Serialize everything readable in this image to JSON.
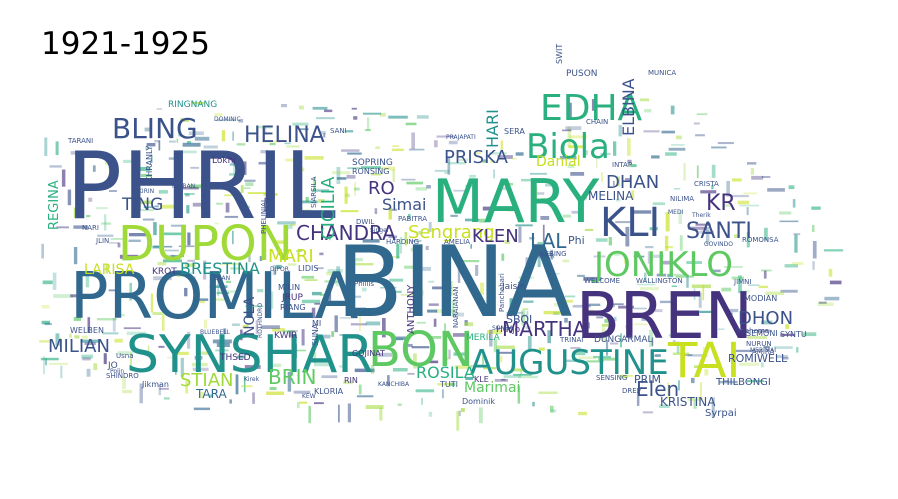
{
  "title": "1921-1925",
  "palette": {
    "dark_purple": "#46337e",
    "indigo": "#3b528b",
    "steel_blue": "#31688e",
    "teal": "#21918c",
    "sea_green": "#2ab07f",
    "green": "#5ec962",
    "lime": "#a0da39",
    "yellow_green": "#c8e020"
  },
  "words": [
    {
      "text": "PHRIL",
      "color": "#3b528b"
    },
    {
      "text": "BINA",
      "color": "#31688e"
    },
    {
      "text": "MARY",
      "color": "#2ab07f"
    },
    {
      "text": "PROMILA",
      "color": "#31688e"
    },
    {
      "text": "SYNSHAR",
      "color": "#21918c"
    },
    {
      "text": "BREN",
      "color": "#46337e"
    },
    {
      "text": "BON",
      "color": "#5ec962"
    },
    {
      "text": "DUPON",
      "color": "#a0da39"
    },
    {
      "text": "TAI",
      "color": "#c8e020"
    },
    {
      "text": "AUGUSTINE",
      "color": "#21918c"
    },
    {
      "text": "EDHA",
      "color": "#2ab07f"
    },
    {
      "text": "BLING",
      "color": "#3b528b"
    },
    {
      "text": "Biola",
      "color": "#2ab07f"
    },
    {
      "text": "JONIKLO",
      "color": "#5ec962"
    },
    {
      "text": "KLI",
      "color": "#3b528b"
    },
    {
      "text": "HELINA",
      "color": "#3b528b"
    },
    {
      "text": "CHANDRA",
      "color": "#46337e"
    },
    {
      "text": "MARTHA",
      "color": "#46337e"
    },
    {
      "text": "SANTI",
      "color": "#3b528b"
    },
    {
      "text": "MILIAN",
      "color": "#3b528b"
    },
    {
      "text": "STIAN",
      "color": "#a0da39"
    },
    {
      "text": "BRIN",
      "color": "#5ec962"
    },
    {
      "text": "ROSILA",
      "color": "#2ab07f"
    },
    {
      "text": "BRESTINA",
      "color": "#21918c"
    },
    {
      "text": "Sengrang",
      "color": "#c8e020"
    },
    {
      "text": "PRISKA",
      "color": "#3b528b"
    },
    {
      "text": "DHAN",
      "color": "#3b528b"
    },
    {
      "text": "DHON",
      "color": "#3b528b"
    },
    {
      "text": "Elen",
      "color": "#3b528b"
    },
    {
      "text": "KLEN",
      "color": "#46337e"
    },
    {
      "text": "LAL",
      "color": "#31688e"
    },
    {
      "text": "KR",
      "color": "#46337e"
    },
    {
      "text": "MARI",
      "color": "#c8e020"
    },
    {
      "text": "RO",
      "color": "#46337e"
    },
    {
      "text": "Simai",
      "color": "#3b528b"
    },
    {
      "text": "TING",
      "color": "#3b528b"
    },
    {
      "text": "LARISA",
      "color": "#c8e020"
    },
    {
      "text": "ELBINA",
      "color": "#3b528b"
    },
    {
      "text": "CICILIA",
      "color": "#2ab07f"
    },
    {
      "text": "HARI",
      "color": "#21918c"
    },
    {
      "text": "Marimai",
      "color": "#5ec962"
    },
    {
      "text": "KRISTINA",
      "color": "#3b528b"
    },
    {
      "text": "ANTHONY",
      "color": "#46337e"
    },
    {
      "text": "TARA",
      "color": "#31688e"
    },
    {
      "text": "NOLA",
      "color": "#3b528b"
    },
    {
      "text": "REGINA",
      "color": "#2ab07f"
    },
    {
      "text": "Danial",
      "color": "#c8e020"
    },
    {
      "text": "MELINA",
      "color": "#3b528b"
    },
    {
      "text": "ROMIWELL",
      "color": "#3b528b"
    },
    {
      "text": "THILBONGI",
      "color": "#3b528b"
    },
    {
      "text": "Syrpai",
      "color": "#3b528b"
    },
    {
      "text": "PRIM",
      "color": "#3b528b"
    },
    {
      "text": "SBOI",
      "color": "#3b528b"
    },
    {
      "text": "Phi",
      "color": "#3b528b"
    },
    {
      "text": "RINGNANG",
      "color": "#21918c"
    },
    {
      "text": "KHRANLY",
      "color": "#3b528b"
    },
    {
      "text": "Lokhi",
      "color": "#46337e"
    },
    {
      "text": "SOPRING",
      "color": "#3b528b"
    },
    {
      "text": "RONSING",
      "color": "#3b528b"
    },
    {
      "text": "HARDING",
      "color": "#3b528b"
    },
    {
      "text": "AMELIA",
      "color": "#3b528b"
    },
    {
      "text": "WELCOME",
      "color": "#3b528b"
    },
    {
      "text": "WALLINGTON",
      "color": "#3b528b"
    },
    {
      "text": "MODIAN",
      "color": "#3b528b"
    },
    {
      "text": "SEMONI",
      "color": "#3b528b"
    },
    {
      "text": "SYNTU",
      "color": "#3b528b"
    },
    {
      "text": "NURUN",
      "color": "#3b528b"
    },
    {
      "text": "AMIRA",
      "color": "#3b528b"
    },
    {
      "text": "DUNGARMAL",
      "color": "#3b528b"
    },
    {
      "text": "MERILA",
      "color": "#2ab07f"
    },
    {
      "text": "TRINAI",
      "color": "#3b528b"
    },
    {
      "text": "Jaisin",
      "color": "#3b528b"
    },
    {
      "text": "Panchabari",
      "color": "#3b528b"
    },
    {
      "text": "NARAIANAN",
      "color": "#3b528b"
    },
    {
      "text": "Hurjo",
      "color": "#46337e"
    },
    {
      "text": "KWIR",
      "color": "#46337e"
    },
    {
      "text": "JRUP",
      "color": "#46337e"
    },
    {
      "text": "LIDIS",
      "color": "#3b528b"
    },
    {
      "text": "KROT",
      "color": "#46337e"
    },
    {
      "text": "WELBEN",
      "color": "#3b528b"
    },
    {
      "text": "GOJINAT",
      "color": "#46337e"
    },
    {
      "text": "KLORIA",
      "color": "#3b528b"
    },
    {
      "text": "RIN",
      "color": "#46337e"
    },
    {
      "text": "TUTI",
      "color": "#3b528b"
    },
    {
      "text": "Dominik",
      "color": "#3b528b"
    },
    {
      "text": "KLE",
      "color": "#46337e"
    },
    {
      "text": "Jikman",
      "color": "#3b528b"
    },
    {
      "text": "SHINDRO",
      "color": "#3b528b"
    },
    {
      "text": "THSED",
      "color": "#46337e"
    },
    {
      "text": "PABITRA",
      "color": "#3b528b"
    },
    {
      "text": "SERA",
      "color": "#3b528b"
    },
    {
      "text": "PUSON",
      "color": "#3b528b"
    },
    {
      "text": "SWIT",
      "color": "#3b528b"
    },
    {
      "text": "MUNICA",
      "color": "#3b528b"
    },
    {
      "text": "NILIMA",
      "color": "#3b528b"
    },
    {
      "text": "INTAP",
      "color": "#3b528b"
    },
    {
      "text": "PHELINIAL",
      "color": "#3b528b"
    },
    {
      "text": "SANI",
      "color": "#3b528b"
    },
    {
      "text": "JLIN",
      "color": "#3b528b"
    },
    {
      "text": "NARI",
      "color": "#3b528b"
    },
    {
      "text": "MILIN",
      "color": "#3b528b"
    },
    {
      "text": "RIANG",
      "color": "#3b528b"
    },
    {
      "text": "MI",
      "color": "#3b528b"
    },
    {
      "text": "SUNA",
      "color": "#3b528b"
    },
    {
      "text": "BISSIBON",
      "color": "#3b528b"
    },
    {
      "text": "DOMINIC",
      "color": "#3b528b"
    },
    {
      "text": "TARANI",
      "color": "#3b528b"
    },
    {
      "text": "KEBING",
      "color": "#3b528b"
    },
    {
      "text": "SENSING",
      "color": "#3b528b"
    },
    {
      "text": "DREP",
      "color": "#3b528b"
    },
    {
      "text": "Shahema",
      "color": "#3b528b"
    },
    {
      "text": "GOVINDO",
      "color": "#3b528b"
    },
    {
      "text": "ROMONSA",
      "color": "#3b528b"
    },
    {
      "text": "CRISTA",
      "color": "#3b528b"
    },
    {
      "text": "JIMNI",
      "color": "#3b528b"
    },
    {
      "text": "MERIMAI",
      "color": "#3b528b"
    },
    {
      "text": "KHER",
      "color": "#3b528b"
    },
    {
      "text": "DIPOR",
      "color": "#3b528b"
    },
    {
      "text": "ROTHNDRO",
      "color": "#3b528b"
    },
    {
      "text": "BLUEBELL",
      "color": "#3b528b"
    },
    {
      "text": "Usna",
      "color": "#3b528b"
    },
    {
      "text": "JO",
      "color": "#3b528b"
    },
    {
      "text": "Polin",
      "color": "#3b528b"
    },
    {
      "text": "BIJAN",
      "color": "#3b528b"
    },
    {
      "text": "SIARSILA",
      "color": "#3b528b"
    },
    {
      "text": "DWIL",
      "color": "#3b528b"
    },
    {
      "text": "Singer",
      "color": "#3b528b"
    },
    {
      "text": "KIRIN",
      "color": "#3b528b"
    },
    {
      "text": "NIRBAN",
      "color": "#3b528b"
    },
    {
      "text": "Phillis",
      "color": "#3b528b"
    },
    {
      "text": "Kirek",
      "color": "#3b528b"
    },
    {
      "text": "KEW",
      "color": "#3b528b"
    },
    {
      "text": "KANCHIBA",
      "color": "#3b528b"
    },
    {
      "text": "PRAJAPATI",
      "color": "#3b528b"
    },
    {
      "text": "SONBA",
      "color": "#3b528b"
    },
    {
      "text": "CHAIN",
      "color": "#3b528b"
    },
    {
      "text": "Therik",
      "color": "#3b528b"
    },
    {
      "text": "MEDI",
      "color": "#3b528b"
    }
  ]
}
